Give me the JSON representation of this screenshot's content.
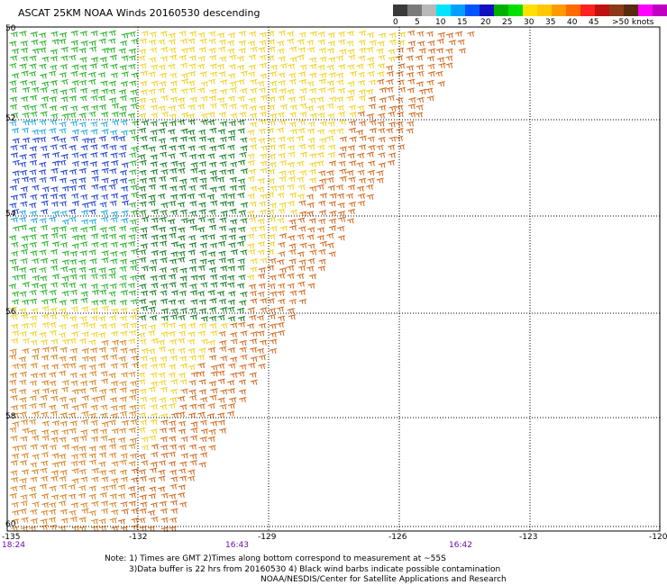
{
  "title": "ASCAT 25KM NOAA Winds 20160530 descending",
  "legend": {
    "colors": [
      "#3a3a3a",
      "#7a7a7a",
      "#b8b8b8",
      "#00e5ff",
      "#00a0ff",
      "#0055ff",
      "#1010c0",
      "#00b000",
      "#00e000",
      "#ffe000",
      "#ffc800",
      "#ff9a00",
      "#ff6a00",
      "#ff2020",
      "#c01010",
      "#8b3a1a",
      "#5a2a10",
      "#ff00ff",
      "#c000c0",
      "#7a00a0",
      "#3a0070"
    ],
    "labels": [
      "0",
      "5",
      "10",
      "15",
      "20",
      "25",
      "30",
      "35",
      "40",
      "45",
      ">50 knots"
    ]
  },
  "lat_labels": [
    "50",
    "52",
    "54",
    "56",
    "58",
    "60"
  ],
  "lon_labels": [
    "-135",
    "-132",
    "-129",
    "-126",
    "-123",
    "-120"
  ],
  "times": [
    "18:24",
    "16:43",
    "16:42"
  ],
  "notes": [
    "Note: 1) Times are GMT 2)Times along bottom correspond to measurement at ~55S",
    "3)Data buffer is 22 hrs from 20160530 4) Black wind barbs indicate possible contamination",
    "NOAA/NESDIS/Center for Satellite Applications and Research"
  ]
}
